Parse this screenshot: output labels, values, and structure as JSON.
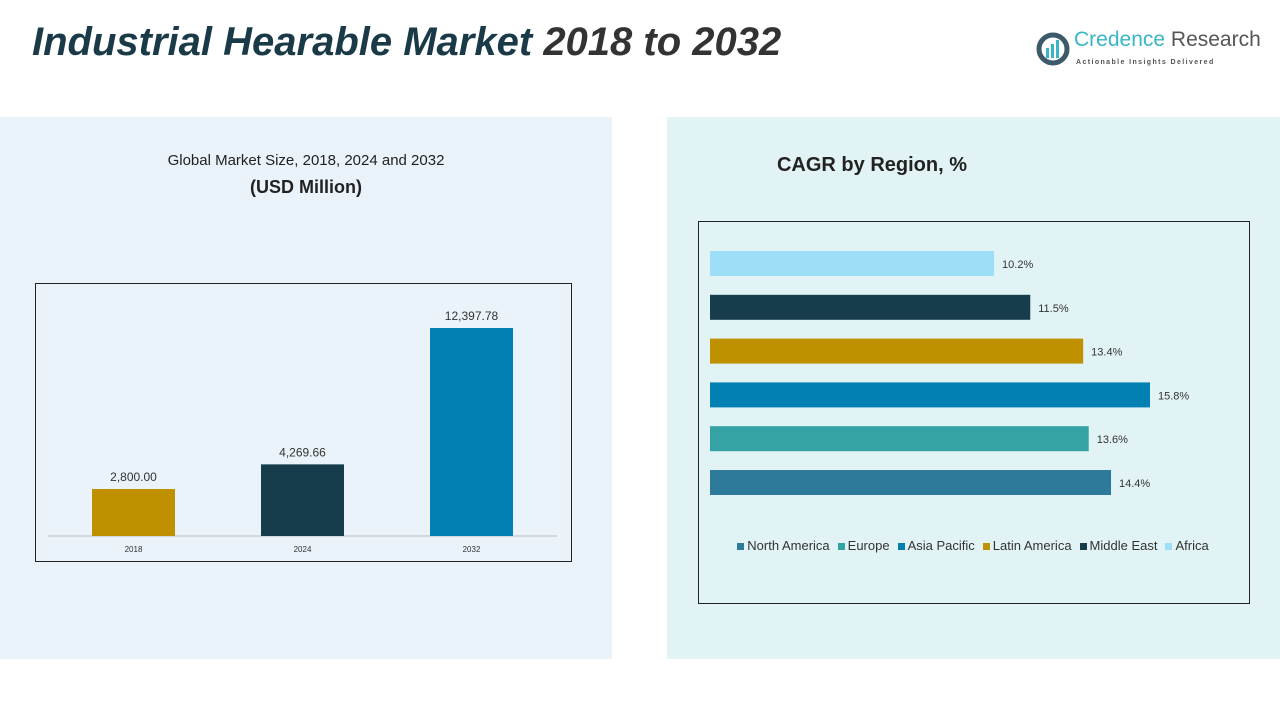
{
  "header": {
    "title_main": "Industrial Hearable Market",
    "title_years": "2018 to 2032"
  },
  "logo": {
    "name_part1": "Credence",
    "name_part2": "Research",
    "tagline": "Actionable Insights Delivered"
  },
  "chart_data": [
    {
      "type": "bar",
      "title": "Global Market Size, 2018, 2024 and 2032",
      "subtitle": "(USD Million)",
      "categories": [
        "2018",
        "2024",
        "2032"
      ],
      "values": [
        2800.0,
        4269.66,
        12397.78
      ],
      "value_labels": [
        "2,800.00",
        "4,269.66",
        "12,397.78"
      ],
      "colors": [
        "#bf9000",
        "#173d4c",
        "#0080b3"
      ],
      "ylim": [
        0,
        14000
      ],
      "grid": false
    },
    {
      "type": "bar",
      "orientation": "horizontal",
      "title": "CAGR by Region, %",
      "categories": [
        "North America",
        "Europe",
        "Asia Pacific",
        "Latin America",
        "Middle East",
        "Africa"
      ],
      "values": [
        14.4,
        13.6,
        15.8,
        13.4,
        11.5,
        10.2
      ],
      "value_labels": [
        "14.4%",
        "13.6%",
        "15.8%",
        "13.4%",
        "11.5%",
        "10.2%"
      ],
      "colors": [
        "#2e7a9b",
        "#35a3a3",
        "#0080b3",
        "#bf9000",
        "#173d4c",
        "#9ddff7"
      ],
      "legend": "bottom",
      "grid": false
    }
  ]
}
